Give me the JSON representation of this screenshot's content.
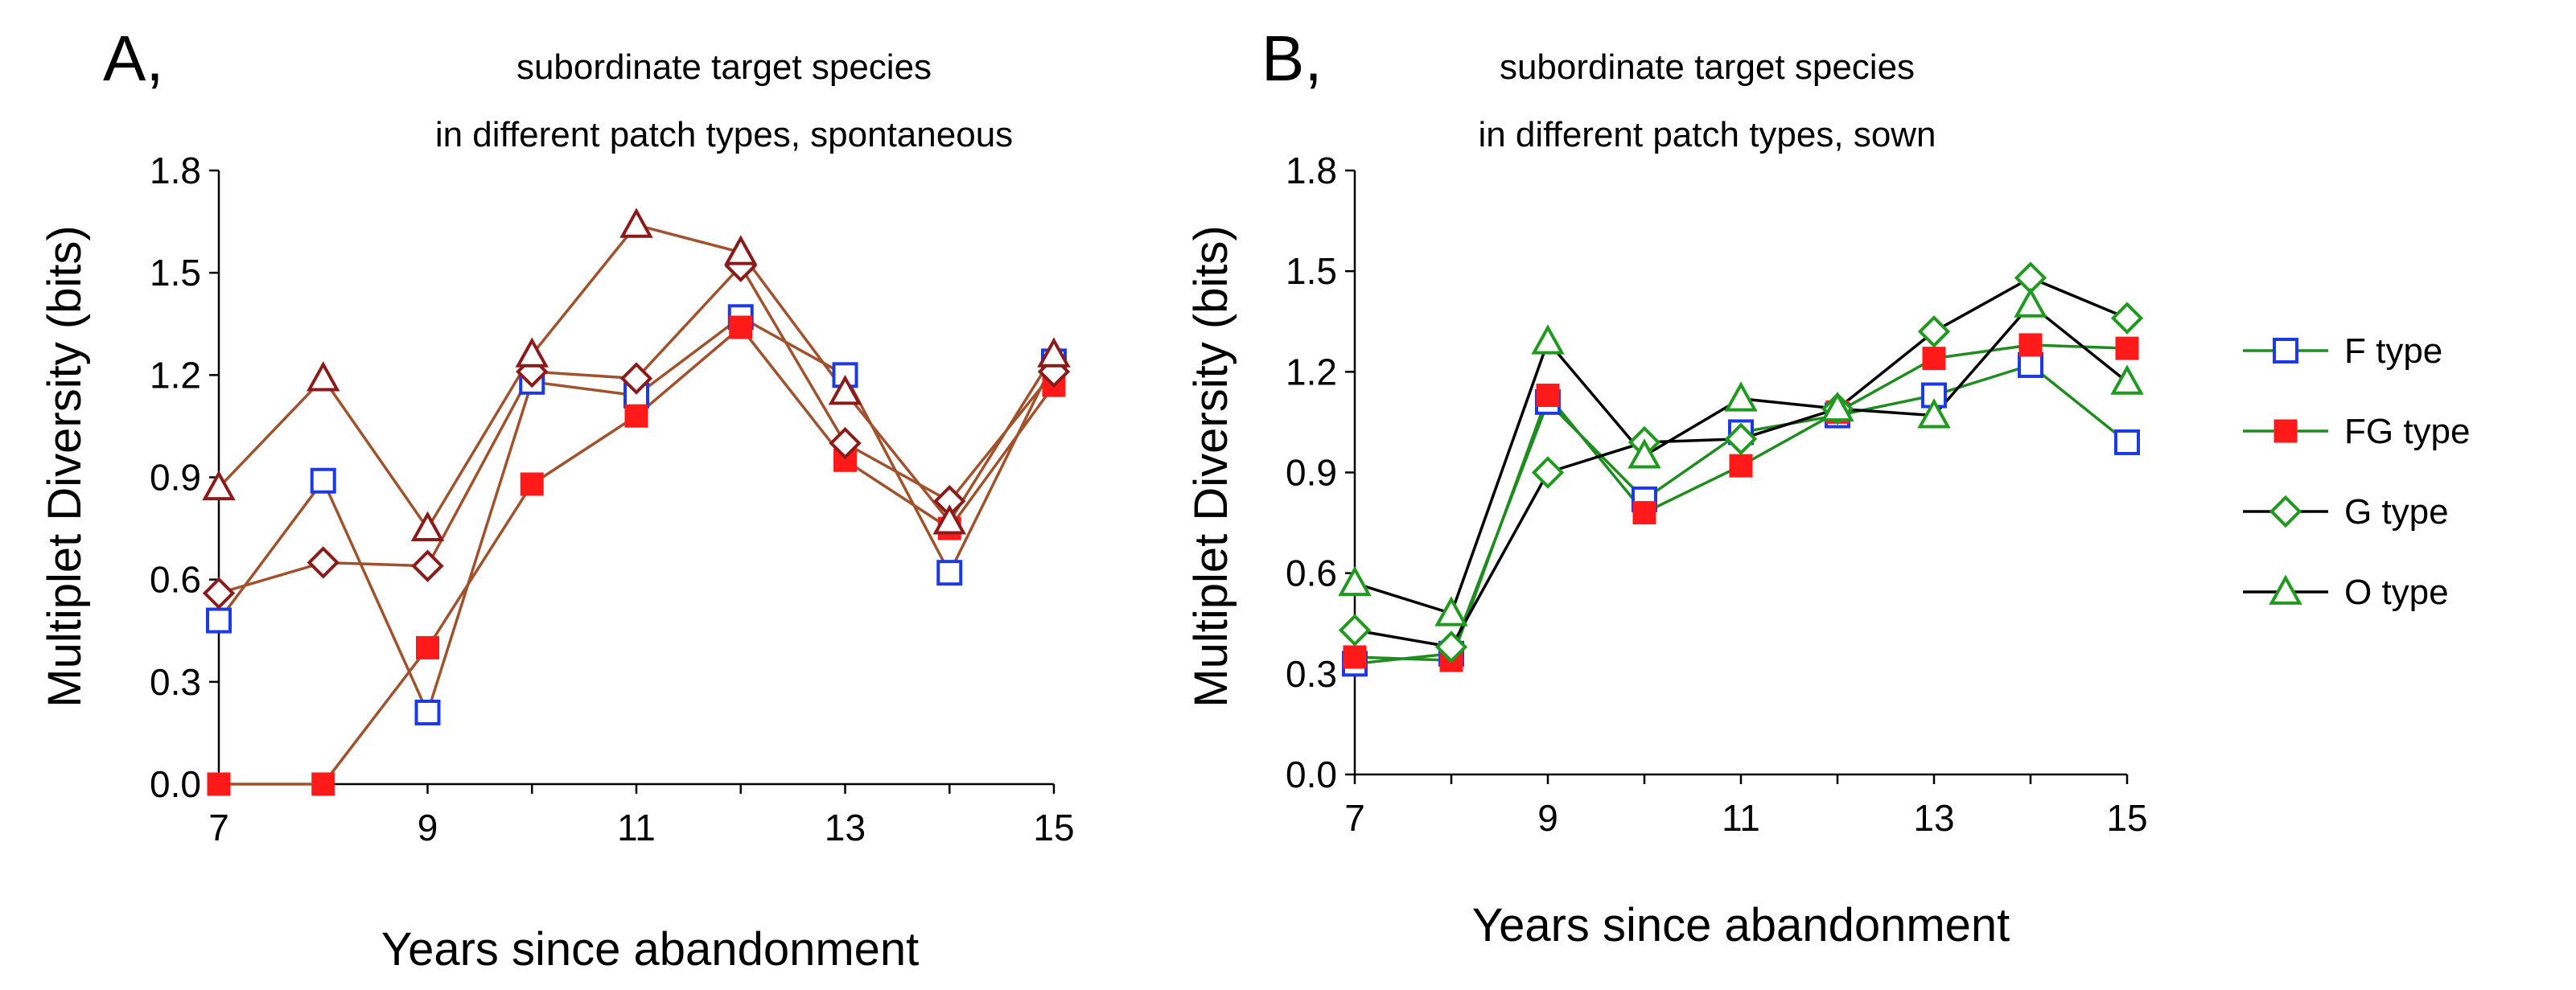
{
  "chart_data": [
    {
      "type": "line",
      "panel_label": "A,",
      "title_lines": [
        "subordinate target species",
        "in different patch types, spontaneous"
      ],
      "xlabel": "Years since abandonment",
      "ylabel": "Multiplet Diversity (bits)",
      "x": [
        7,
        8,
        9,
        10,
        11,
        12,
        13,
        14,
        15
      ],
      "xticks": [
        "7",
        "9",
        "11",
        "13",
        "15"
      ],
      "yticks": [
        "0.0",
        "0.3",
        "0.6",
        "0.9",
        "1.2",
        "1.5",
        "1.8"
      ],
      "xlim": [
        7,
        15
      ],
      "ylim": [
        0,
        1.8
      ],
      "series": [
        {
          "name": "F type",
          "values": [
            0.48,
            0.89,
            0.21,
            1.18,
            1.14,
            1.37,
            1.2,
            0.62,
            1.24
          ]
        },
        {
          "name": "FG type",
          "values": [
            0.0,
            0.0,
            0.4,
            0.88,
            1.08,
            1.34,
            0.95,
            0.75,
            1.17
          ]
        },
        {
          "name": "G type",
          "values": [
            0.56,
            0.65,
            0.64,
            1.21,
            1.19,
            1.52,
            1.0,
            0.83,
            1.21
          ]
        },
        {
          "name": "O type",
          "values": [
            0.87,
            1.19,
            0.75,
            1.26,
            1.64,
            1.56,
            1.15,
            0.77,
            1.26
          ]
        }
      ]
    },
    {
      "type": "line",
      "panel_label": "B,",
      "title_lines": [
        "subordinate target species",
        "in different patch types, sown"
      ],
      "xlabel": "Years since abandonment",
      "ylabel": "Multiplet Diversity (bits)",
      "x": [
        7,
        8,
        9,
        10,
        11,
        12,
        13,
        14,
        15
      ],
      "xticks": [
        "7",
        "9",
        "11",
        "13",
        "15"
      ],
      "yticks": [
        "0.0",
        "0.3",
        "0.6",
        "0.9",
        "1.2",
        "1.5",
        "1.8"
      ],
      "xlim": [
        7,
        15
      ],
      "ylim": [
        0,
        1.8
      ],
      "series": [
        {
          "name": "F type",
          "values": [
            0.33,
            0.36,
            1.11,
            0.82,
            1.02,
            1.07,
            1.13,
            1.22,
            0.99
          ]
        },
        {
          "name": "FG type",
          "values": [
            0.35,
            0.34,
            1.13,
            0.78,
            0.92,
            1.08,
            1.24,
            1.28,
            1.27
          ]
        },
        {
          "name": "G type",
          "values": [
            0.43,
            0.38,
            0.9,
            0.99,
            1.0,
            1.09,
            1.32,
            1.48,
            1.36
          ]
        },
        {
          "name": "O type",
          "values": [
            0.57,
            0.48,
            1.29,
            0.95,
            1.12,
            1.09,
            1.07,
            1.4,
            1.17
          ]
        }
      ]
    }
  ],
  "legend": [
    "F type",
    "FG type",
    "G type",
    "O type"
  ],
  "colors": {
    "panel_a_line": "#a0522d",
    "f_marker": "#1c39e8",
    "fg_marker": "#ff1a1a",
    "g_marker_a": "#8b1a1a",
    "o_marker_a": "#8b1a1a",
    "b_line_green": "#1f8c1f",
    "b_line_black": "#000000",
    "b_marker_green": "#1f9a1f"
  }
}
